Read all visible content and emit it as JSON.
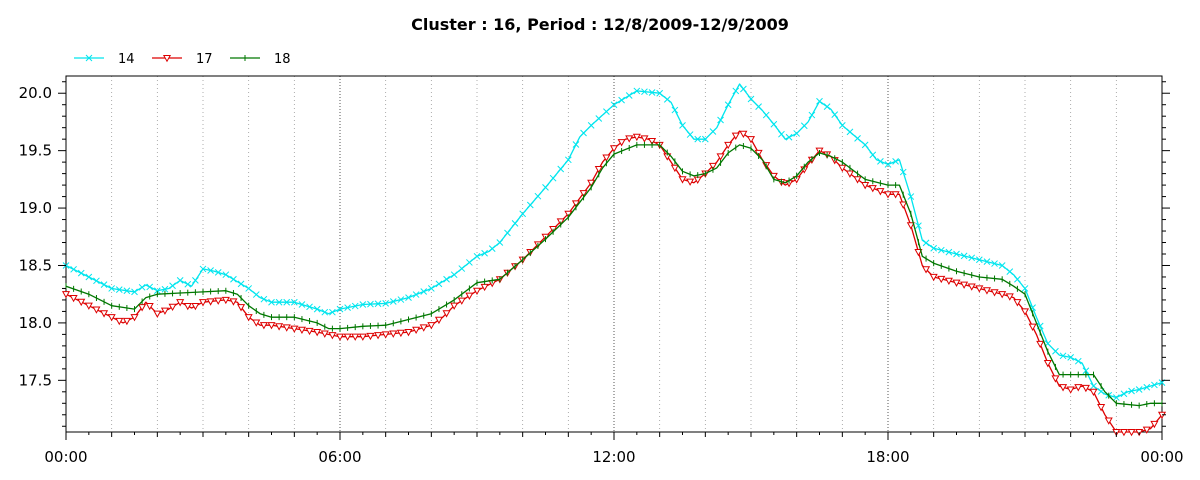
{
  "chart_data": {
    "type": "line",
    "title": "Cluster : 16, Period : 12/8/2009-12/9/2009",
    "xlabel": "",
    "ylabel": "",
    "xlim": [
      0,
      24
    ],
    "ylim": [
      17.05,
      20.15
    ],
    "x_ticks": [
      0,
      6,
      12,
      18,
      24
    ],
    "x_tick_labels": [
      "00:00",
      "06:00",
      "12:00",
      "18:00",
      "00:00"
    ],
    "y_ticks": [
      17.5,
      18.0,
      18.5,
      19.0,
      19.5,
      20.0
    ],
    "y_tick_labels": [
      "17.5",
      "18.0",
      "18.5",
      "19.0",
      "19.5",
      "20.0"
    ],
    "grid": "vertical dotted",
    "legend_position": "top-left",
    "series": [
      {
        "name": "14",
        "color": "#00e5ee",
        "marker": "x",
        "points": [
          [
            0,
            18.5
          ],
          [
            0.5,
            18.4
          ],
          [
            1,
            18.3
          ],
          [
            1.5,
            18.27
          ],
          [
            1.75,
            18.33
          ],
          [
            2,
            18.28
          ],
          [
            2.25,
            18.3
          ],
          [
            2.5,
            18.37
          ],
          [
            2.75,
            18.32
          ],
          [
            3,
            18.47
          ],
          [
            3.25,
            18.45
          ],
          [
            3.5,
            18.42
          ],
          [
            4,
            18.3
          ],
          [
            4.25,
            18.22
          ],
          [
            4.5,
            18.18
          ],
          [
            5,
            18.18
          ],
          [
            5.5,
            18.12
          ],
          [
            5.75,
            18.08
          ],
          [
            6,
            18.12
          ],
          [
            6.5,
            18.16
          ],
          [
            7,
            18.17
          ],
          [
            7.5,
            18.22
          ],
          [
            8,
            18.3
          ],
          [
            8.5,
            18.42
          ],
          [
            9,
            18.58
          ],
          [
            9.25,
            18.62
          ],
          [
            9.5,
            18.7
          ],
          [
            10,
            18.95
          ],
          [
            10.5,
            19.18
          ],
          [
            10.75,
            19.3
          ],
          [
            11,
            19.42
          ],
          [
            11.25,
            19.62
          ],
          [
            11.5,
            19.72
          ],
          [
            12,
            19.9
          ],
          [
            12.5,
            20.02
          ],
          [
            13,
            20.0
          ],
          [
            13.25,
            19.92
          ],
          [
            13.5,
            19.72
          ],
          [
            13.75,
            19.6
          ],
          [
            14,
            19.6
          ],
          [
            14.25,
            19.7
          ],
          [
            14.5,
            19.9
          ],
          [
            14.75,
            20.08
          ],
          [
            15,
            19.95
          ],
          [
            15.25,
            19.85
          ],
          [
            15.5,
            19.73
          ],
          [
            15.75,
            19.6
          ],
          [
            16,
            19.65
          ],
          [
            16.25,
            19.75
          ],
          [
            16.5,
            19.93
          ],
          [
            16.75,
            19.86
          ],
          [
            17,
            19.72
          ],
          [
            17.5,
            19.55
          ],
          [
            17.75,
            19.42
          ],
          [
            18,
            19.38
          ],
          [
            18.25,
            19.42
          ],
          [
            18.5,
            19.1
          ],
          [
            18.75,
            18.72
          ],
          [
            19,
            18.65
          ],
          [
            19.5,
            18.6
          ],
          [
            20,
            18.55
          ],
          [
            20.5,
            18.5
          ],
          [
            20.75,
            18.42
          ],
          [
            21,
            18.3
          ],
          [
            21.25,
            18.05
          ],
          [
            21.5,
            17.82
          ],
          [
            21.75,
            17.72
          ],
          [
            22,
            17.7
          ],
          [
            22.25,
            17.65
          ],
          [
            22.5,
            17.45
          ],
          [
            22.75,
            17.38
          ],
          [
            23,
            17.35
          ],
          [
            23.25,
            17.4
          ],
          [
            23.5,
            17.42
          ],
          [
            24,
            17.48
          ]
        ]
      },
      {
        "name": "17",
        "color": "#dd0000",
        "marker": "triangle-down",
        "points": [
          [
            0,
            18.25
          ],
          [
            0.5,
            18.15
          ],
          [
            1,
            18.05
          ],
          [
            1.25,
            18.0
          ],
          [
            1.5,
            18.05
          ],
          [
            1.75,
            18.18
          ],
          [
            2,
            18.08
          ],
          [
            2.25,
            18.12
          ],
          [
            2.5,
            18.18
          ],
          [
            2.75,
            18.13
          ],
          [
            3,
            18.18
          ],
          [
            3.5,
            18.2
          ],
          [
            3.75,
            18.18
          ],
          [
            4,
            18.05
          ],
          [
            4.25,
            17.98
          ],
          [
            4.5,
            17.98
          ],
          [
            5,
            17.95
          ],
          [
            5.5,
            17.92
          ],
          [
            6,
            17.88
          ],
          [
            6.5,
            17.88
          ],
          [
            7,
            17.9
          ],
          [
            7.5,
            17.92
          ],
          [
            8,
            17.98
          ],
          [
            8.25,
            18.05
          ],
          [
            8.5,
            18.15
          ],
          [
            9,
            18.28
          ],
          [
            9.5,
            18.38
          ],
          [
            10,
            18.55
          ],
          [
            10.5,
            18.75
          ],
          [
            11,
            18.95
          ],
          [
            11.5,
            19.22
          ],
          [
            11.75,
            19.4
          ],
          [
            12,
            19.52
          ],
          [
            12.25,
            19.6
          ],
          [
            12.5,
            19.62
          ],
          [
            12.75,
            19.6
          ],
          [
            13,
            19.55
          ],
          [
            13.25,
            19.4
          ],
          [
            13.5,
            19.25
          ],
          [
            13.75,
            19.22
          ],
          [
            14,
            19.3
          ],
          [
            14.25,
            19.4
          ],
          [
            14.5,
            19.55
          ],
          [
            14.75,
            19.67
          ],
          [
            15,
            19.6
          ],
          [
            15.25,
            19.42
          ],
          [
            15.5,
            19.28
          ],
          [
            15.75,
            19.2
          ],
          [
            16,
            19.25
          ],
          [
            16.25,
            19.38
          ],
          [
            16.5,
            19.5
          ],
          [
            16.75,
            19.45
          ],
          [
            17,
            19.35
          ],
          [
            17.5,
            19.2
          ],
          [
            18,
            19.12
          ],
          [
            18.25,
            19.12
          ],
          [
            18.5,
            18.85
          ],
          [
            18.75,
            18.5
          ],
          [
            19,
            18.4
          ],
          [
            19.5,
            18.35
          ],
          [
            20,
            18.3
          ],
          [
            20.5,
            18.25
          ],
          [
            20.75,
            18.22
          ],
          [
            21,
            18.1
          ],
          [
            21.25,
            17.9
          ],
          [
            21.5,
            17.65
          ],
          [
            21.75,
            17.45
          ],
          [
            22,
            17.42
          ],
          [
            22.25,
            17.45
          ],
          [
            22.5,
            17.4
          ],
          [
            22.75,
            17.2
          ],
          [
            23,
            17.05
          ],
          [
            23.5,
            17.05
          ],
          [
            23.75,
            17.08
          ],
          [
            24,
            17.2
          ]
        ]
      },
      {
        "name": "18",
        "color": "#007700",
        "marker": "tick",
        "points": [
          [
            0,
            18.32
          ],
          [
            0.5,
            18.25
          ],
          [
            1,
            18.15
          ],
          [
            1.5,
            18.12
          ],
          [
            1.75,
            18.22
          ],
          [
            2,
            18.25
          ],
          [
            2.5,
            18.26
          ],
          [
            3,
            18.27
          ],
          [
            3.5,
            18.28
          ],
          [
            3.75,
            18.25
          ],
          [
            4,
            18.15
          ],
          [
            4.25,
            18.08
          ],
          [
            4.5,
            18.05
          ],
          [
            5,
            18.05
          ],
          [
            5.5,
            18.0
          ],
          [
            5.75,
            17.95
          ],
          [
            6,
            17.95
          ],
          [
            6.5,
            17.97
          ],
          [
            7,
            17.98
          ],
          [
            7.5,
            18.03
          ],
          [
            8,
            18.08
          ],
          [
            8.5,
            18.2
          ],
          [
            9,
            18.35
          ],
          [
            9.5,
            18.38
          ],
          [
            10,
            18.55
          ],
          [
            10.5,
            18.73
          ],
          [
            11,
            18.92
          ],
          [
            11.5,
            19.18
          ],
          [
            11.75,
            19.35
          ],
          [
            12,
            19.47
          ],
          [
            12.5,
            19.55
          ],
          [
            13,
            19.55
          ],
          [
            13.25,
            19.45
          ],
          [
            13.5,
            19.32
          ],
          [
            13.75,
            19.28
          ],
          [
            14,
            19.3
          ],
          [
            14.25,
            19.35
          ],
          [
            14.5,
            19.48
          ],
          [
            14.75,
            19.55
          ],
          [
            15,
            19.52
          ],
          [
            15.25,
            19.42
          ],
          [
            15.5,
            19.25
          ],
          [
            15.75,
            19.22
          ],
          [
            16,
            19.28
          ],
          [
            16.25,
            19.4
          ],
          [
            16.5,
            19.48
          ],
          [
            16.75,
            19.45
          ],
          [
            17,
            19.4
          ],
          [
            17.5,
            19.25
          ],
          [
            18,
            19.2
          ],
          [
            18.25,
            19.2
          ],
          [
            18.5,
            18.95
          ],
          [
            18.75,
            18.58
          ],
          [
            19,
            18.52
          ],
          [
            19.5,
            18.45
          ],
          [
            20,
            18.4
          ],
          [
            20.5,
            18.38
          ],
          [
            20.75,
            18.32
          ],
          [
            21,
            18.25
          ],
          [
            21.25,
            18.0
          ],
          [
            21.5,
            17.75
          ],
          [
            21.75,
            17.55
          ],
          [
            22,
            17.55
          ],
          [
            22.5,
            17.55
          ],
          [
            22.75,
            17.4
          ],
          [
            23,
            17.3
          ],
          [
            23.5,
            17.28
          ],
          [
            23.75,
            17.3
          ],
          [
            24,
            17.3
          ]
        ]
      }
    ]
  }
}
